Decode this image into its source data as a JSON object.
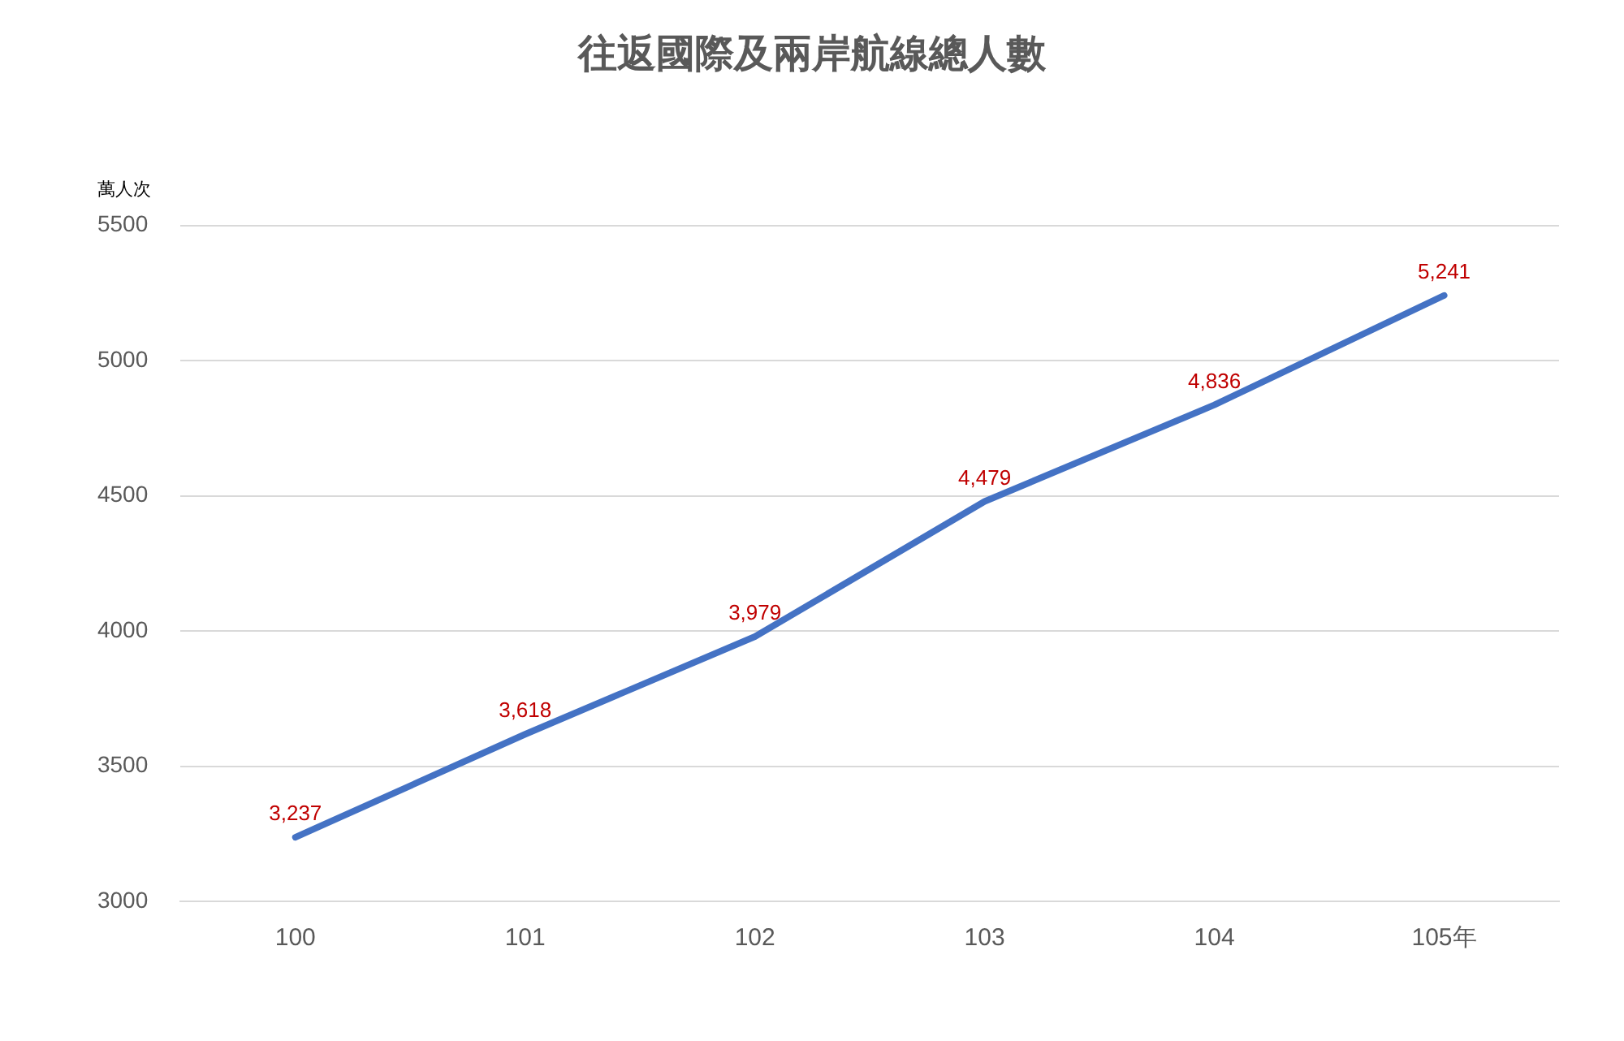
{
  "chart_data": {
    "type": "line",
    "title": "往返國際及兩岸航線總人數",
    "ylabel": "萬人次",
    "categories": [
      "100",
      "101",
      "102",
      "103",
      "104",
      "105年"
    ],
    "series": [
      {
        "color": "#4472c4",
        "values": [
          3237,
          3618,
          3979,
          4479,
          4836,
          5241
        ],
        "value_labels": [
          "3,237",
          "3,618",
          "3,979",
          "4,479",
          "4,836",
          "5,241"
        ]
      }
    ],
    "ylim": [
      3000,
      5500
    ],
    "yticks": [
      3000,
      3500,
      4000,
      4500,
      5000,
      5500
    ],
    "grid": "y",
    "legend": false,
    "marker": "none",
    "line_style": "solid"
  }
}
